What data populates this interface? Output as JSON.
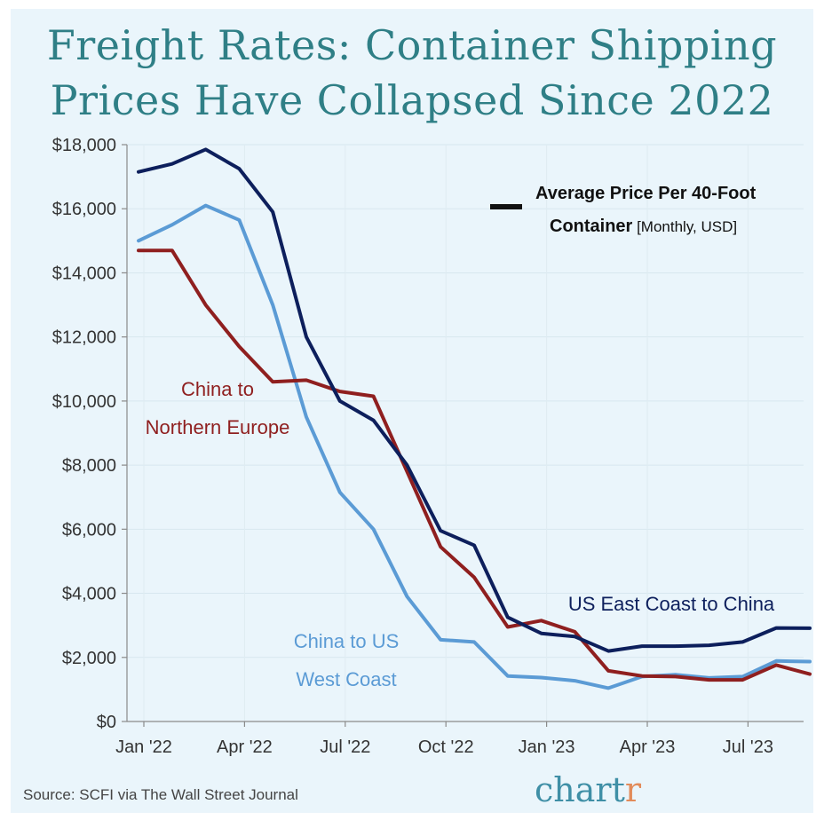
{
  "title_line1": "Freight Rates: Container Shipping",
  "title_line2": "Prices Have Collapsed Since 2022",
  "legend": {
    "line1": "Average Price Per 40-Foot",
    "line2_bold": "Container",
    "line2_rest": " [Monthly, USD]"
  },
  "source": "Source: SCFI via The Wall Street Journal",
  "brand": {
    "main": "chart",
    "accent": "r"
  },
  "chart_data": {
    "type": "line",
    "ylim": [
      0,
      18000
    ],
    "yticks": [
      "$0",
      "$2,000",
      "$4,000",
      "$6,000",
      "$8,000",
      "$10,000",
      "$12,000",
      "$14,000",
      "$16,000",
      "$18,000"
    ],
    "yticks_values": [
      0,
      2000,
      4000,
      6000,
      8000,
      10000,
      12000,
      14000,
      16000,
      18000
    ],
    "x": [
      "Jan '22",
      "Feb '22",
      "Mar '22",
      "Apr '22",
      "May '22",
      "Jun '22",
      "Jul '22",
      "Aug '22",
      "Sep '22",
      "Oct '22",
      "Nov '22",
      "Dec '22",
      "Jan '23",
      "Feb '23",
      "Mar '23",
      "Apr '23",
      "May '23",
      "Jun '23",
      "Jul '23",
      "Aug '23",
      "Sep '23"
    ],
    "xticks": [
      "Jan '22",
      "Apr '22",
      "Jul '22",
      "Oct '22",
      "Jan '23",
      "Apr '23",
      "Jul '23"
    ],
    "xticks_index": [
      0,
      3,
      6,
      9,
      12,
      15,
      18
    ],
    "series": [
      {
        "name": "US East Coast to China",
        "label_lines": [
          "US East Coast to China"
        ],
        "color": "#0d1f5c",
        "values": [
          17150,
          17400,
          17850,
          17250,
          15900,
          12000,
          10000,
          9400,
          8000,
          5950,
          5500,
          3250,
          2750,
          2650,
          2200,
          2350,
          2350,
          2380,
          2480,
          2920,
          2910
        ]
      },
      {
        "name": "China to US West Coast",
        "label_lines": [
          "China to US",
          "West Coast"
        ],
        "color": "#5b9bd5",
        "values": [
          15000,
          15500,
          16100,
          15650,
          13000,
          9500,
          7150,
          6000,
          3900,
          2550,
          2480,
          1420,
          1370,
          1270,
          1040,
          1400,
          1460,
          1360,
          1400,
          1890,
          1870
        ]
      },
      {
        "name": "China to Northern Europe",
        "label_lines": [
          "China to",
          "Northern Europe"
        ],
        "color": "#8f1f1f",
        "values": [
          14700,
          14700,
          13000,
          11700,
          10600,
          10650,
          10300,
          10150,
          7800,
          5450,
          4500,
          2950,
          3150,
          2800,
          1580,
          1420,
          1400,
          1300,
          1300,
          1760,
          1480
        ]
      }
    ]
  }
}
